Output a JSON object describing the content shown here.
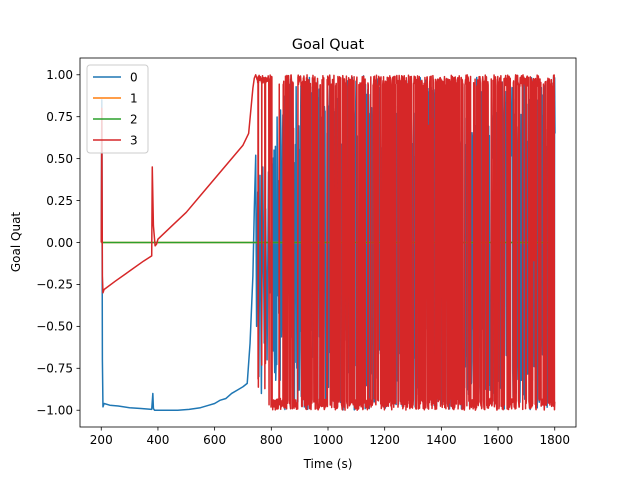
{
  "chart_data": {
    "type": "line",
    "title": "Goal Quat",
    "xlabel": "Time (s)",
    "ylabel": "Goal Quat",
    "xlim": [
      125,
      1875
    ],
    "ylim": [
      -1.1,
      1.1
    ],
    "xticks": [
      200,
      400,
      600,
      800,
      1000,
      1200,
      1400,
      1600,
      1800
    ],
    "xtick_labels": [
      "200",
      "400",
      "600",
      "800",
      "1000",
      "1200",
      "1400",
      "1600",
      "1800"
    ],
    "yticks": [
      -1.0,
      -0.75,
      -0.5,
      -0.25,
      0.0,
      0.25,
      0.5,
      0.75,
      1.0
    ],
    "ytick_labels": [
      "−1.00",
      "−0.75",
      "−0.50",
      "−0.25",
      "0.00",
      "0.25",
      "0.50",
      "0.75",
      "1.00"
    ],
    "legend_position": "top-left",
    "grid": false,
    "series": [
      {
        "name": "0",
        "color": "#1f77b4",
        "x": [
          200,
          202,
          204,
          206,
          210,
          230,
          260,
          300,
          340,
          378,
          382,
          384,
          388,
          400,
          430,
          470,
          510,
          550,
          580,
          600,
          620,
          640,
          660,
          680,
          700,
          715,
          725,
          735,
          740,
          745,
          748,
          752,
          756,
          760,
          765,
          770,
          775,
          780,
          785,
          790,
          795,
          800
        ],
        "y": [
          0.0,
          0.85,
          -0.7,
          -0.98,
          -0.96,
          -0.97,
          -0.975,
          -0.985,
          -0.99,
          -0.995,
          -0.9,
          -0.99,
          -1.0,
          -1.0,
          -1.0,
          -1.0,
          -0.995,
          -0.985,
          -0.97,
          -0.96,
          -0.94,
          -0.93,
          -0.9,
          -0.88,
          -0.86,
          -0.84,
          -0.6,
          -0.2,
          0.2,
          0.52,
          -0.5,
          0.3,
          -0.8,
          0.4,
          -0.9,
          0.45,
          -0.6,
          0.2,
          -0.7,
          0.42,
          -0.3,
          0.1
        ]
      },
      {
        "name": "1",
        "color": "#ff7f0e",
        "x": [
          200,
          1800
        ],
        "y": [
          0.0,
          0.0
        ]
      },
      {
        "name": "2",
        "color": "#2ca02c",
        "x": [
          200,
          1800
        ],
        "y": [
          0.0,
          0.0
        ]
      },
      {
        "name": "3",
        "color": "#d62728",
        "x": [
          200,
          202,
          204,
          206,
          210,
          250,
          300,
          350,
          378,
          380,
          384,
          390,
          395,
          400,
          450,
          500,
          550,
          600,
          650,
          700,
          720,
          735,
          740,
          745,
          750
        ],
        "y": [
          0.0,
          0.8,
          -0.2,
          -0.3,
          -0.28,
          -0.23,
          -0.17,
          -0.11,
          -0.08,
          0.45,
          0.1,
          -0.02,
          -0.01,
          0.02,
          0.1,
          0.18,
          0.28,
          0.38,
          0.48,
          0.58,
          0.65,
          0.92,
          0.98,
          1.0,
          0.97
        ]
      }
    ]
  }
}
